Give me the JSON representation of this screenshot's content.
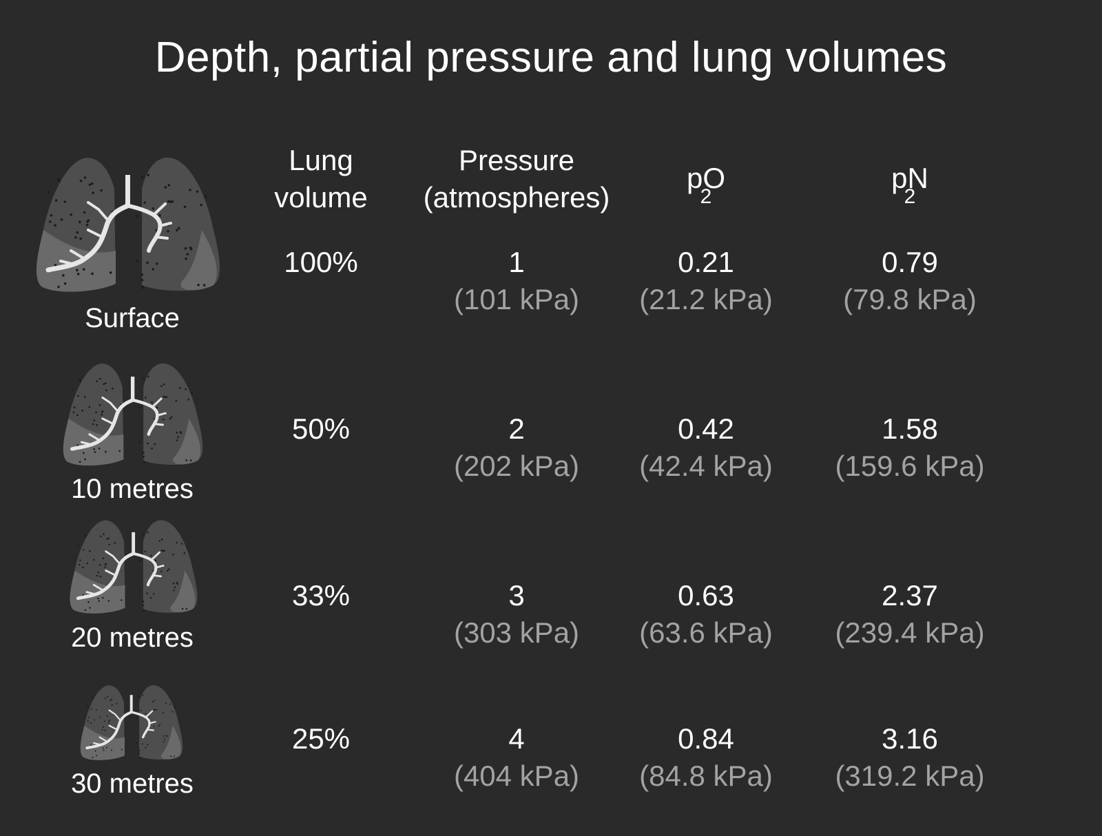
{
  "title": "Depth, partial pressure and lung volumes",
  "headers": {
    "lung_volume": [
      "Lung",
      "volume"
    ],
    "pressure": [
      "Pressure",
      "(atmospheres)"
    ],
    "po2": {
      "base": "pO",
      "sub": "2"
    },
    "pn2": {
      "base": "pN",
      "sub": "2"
    }
  },
  "rows": [
    {
      "depth": "Surface",
      "lung_volume": "100%",
      "pressure": "1",
      "pressure_kpa": "(101 kPa)",
      "po2": "0.21",
      "po2_kpa": "(21.2 kPa)",
      "pn2": "0.79",
      "pn2_kpa": "(79.8 kPa)",
      "lung_scale": 1.0
    },
    {
      "depth": "10 metres",
      "lung_volume": "50%",
      "pressure": "2",
      "pressure_kpa": "(202 kPa)",
      "po2": "0.42",
      "po2_kpa": "(42.4 kPa)",
      "pn2": "1.58",
      "pn2_kpa": "(159.6 kPa)",
      "lung_scale": 0.5
    },
    {
      "depth": "20 metres",
      "lung_volume": "33%",
      "pressure": "3",
      "pressure_kpa": "(303 kPa)",
      "po2": "0.63",
      "po2_kpa": "(63.6 kPa)",
      "pn2": "2.37",
      "pn2_kpa": "(239.4 kPa)",
      "lung_scale": 0.33
    },
    {
      "depth": "30 metres",
      "lung_volume": "25%",
      "pressure": "4",
      "pressure_kpa": "(404 kPa)",
      "po2": "0.84",
      "po2_kpa": "(84.8 kPa)",
      "pn2": "3.16",
      "pn2_kpa": "(319.2 kPa)",
      "lung_scale": 0.25
    }
  ],
  "colors": {
    "background": "#2a2a2a",
    "text": "#ffffff",
    "kpa_text": "#a3a3a3",
    "lung_upper": "#4e4e4e",
    "lung_lower": "#6a6a6a",
    "bronchi": "#e6e6e6"
  }
}
